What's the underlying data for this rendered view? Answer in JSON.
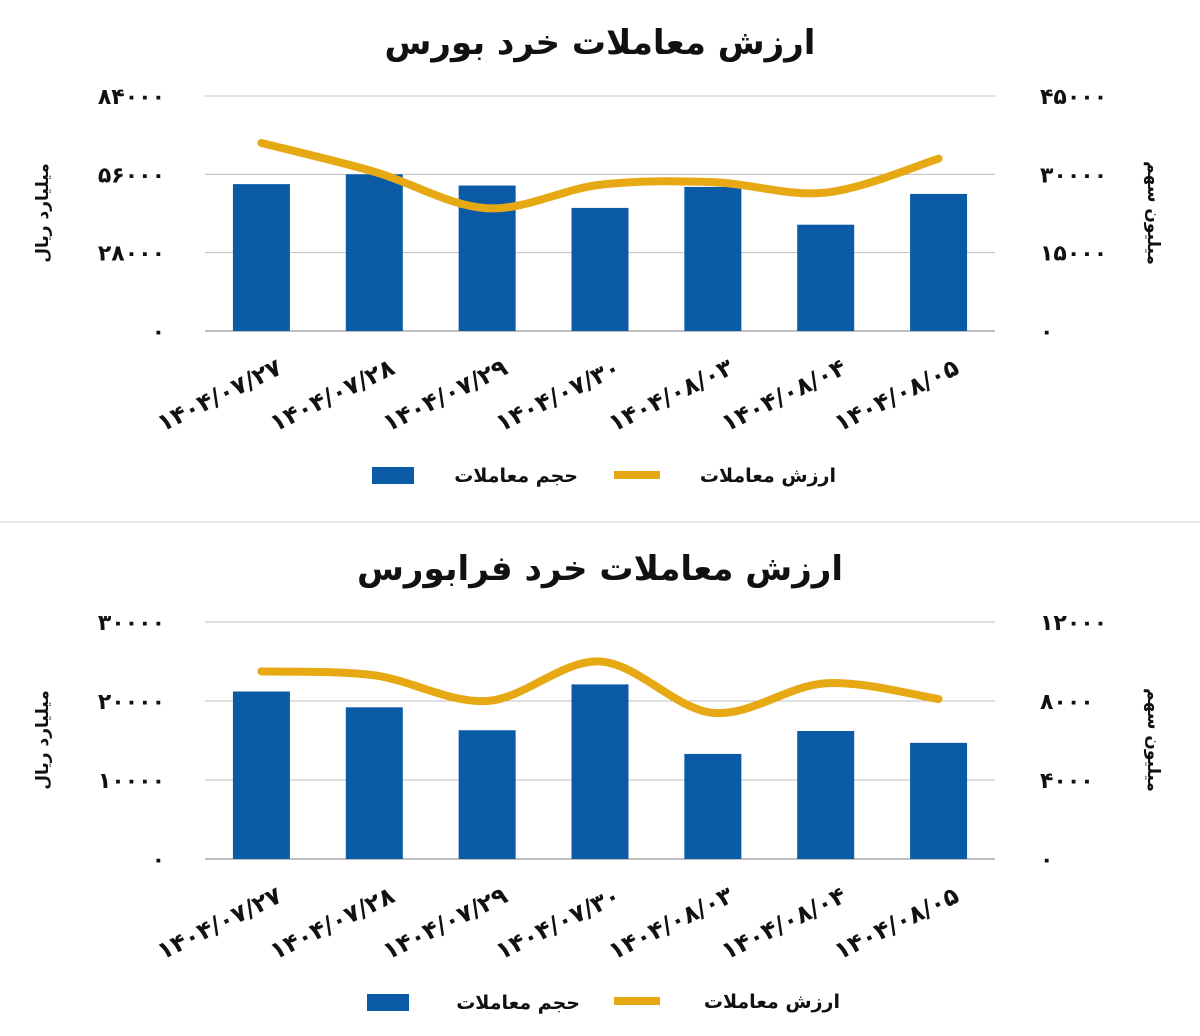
{
  "colors": {
    "bar": "#0a5aa6",
    "line": "#e6a914",
    "grid": "#bfbfbf"
  },
  "chart_data": [
    {
      "type": "bar",
      "title": "ارزش معاملات خرد بورس",
      "ylabel": "میلیارد ریال",
      "y2label": "میلیون سهم",
      "categories": [
        "۱۴۰۴/۰۷/۲۷",
        "۱۴۰۴/۰۷/۲۸",
        "۱۴۰۴/۰۷/۲۹",
        "۱۴۰۴/۰۷/۳۰",
        "۱۴۰۴/۰۸/۰۳",
        "۱۴۰۴/۰۸/۰۴",
        "۱۴۰۴/۰۸/۰۵"
      ],
      "ylim": [
        0,
        84000
      ],
      "yticks": [
        "0",
        "28000",
        "56000",
        "84000"
      ],
      "yticks_display": [
        "۰",
        "۲۸۰۰۰",
        "۵۶۰۰۰",
        "۸۴۰۰۰"
      ],
      "y2lim": [
        0,
        45000
      ],
      "y2ticks_display": [
        "۰",
        "۱۵۰۰۰",
        "۳۰۰۰۰",
        "۴۵۰۰۰"
      ],
      "grid": true,
      "legend_position": "bottom",
      "series": [
        {
          "name": "حجم معاملات",
          "kind": "bar",
          "axis": "left",
          "values": [
            52500,
            56000,
            52000,
            44000,
            51500,
            38000,
            49000
          ]
        },
        {
          "name": "ارزش معاملات",
          "kind": "line",
          "axis": "right",
          "values": [
            36000,
            30500,
            23500,
            28000,
            28500,
            26500,
            33000
          ]
        }
      ]
    },
    {
      "type": "bar",
      "title": "ارزش معاملات خرد فرابورس",
      "ylabel": "میلیارد ریال",
      "y2label": "میلیون سهم",
      "categories": [
        "۱۴۰۴/۰۷/۲۷",
        "۱۴۰۴/۰۷/۲۸",
        "۱۴۰۴/۰۷/۲۹",
        "۱۴۰۴/۰۷/۳۰",
        "۱۴۰۴/۰۸/۰۳",
        "۱۴۰۴/۰۸/۰۴",
        "۱۴۰۴/۰۸/۰۵"
      ],
      "ylim": [
        0,
        30000
      ],
      "yticks": [
        "0",
        "10000",
        "20000",
        "30000"
      ],
      "yticks_display": [
        "۰",
        "۱۰۰۰۰",
        "۲۰۰۰۰",
        "۳۰۰۰۰"
      ],
      "y2lim": [
        0,
        12000
      ],
      "y2ticks_display": [
        "۰",
        "۴۰۰۰",
        "۸۰۰۰",
        "۱۲۰۰۰"
      ],
      "grid": true,
      "legend_position": "bottom",
      "series": [
        {
          "name": "حجم معاملات",
          "kind": "bar",
          "axis": "left",
          "values": [
            21200,
            19200,
            16300,
            22100,
            13300,
            16200,
            14700
          ]
        },
        {
          "name": "ارزش معاملات",
          "kind": "line",
          "axis": "right",
          "values": [
            9500,
            9300,
            8000,
            10000,
            7400,
            8900,
            8100
          ]
        }
      ]
    }
  ]
}
